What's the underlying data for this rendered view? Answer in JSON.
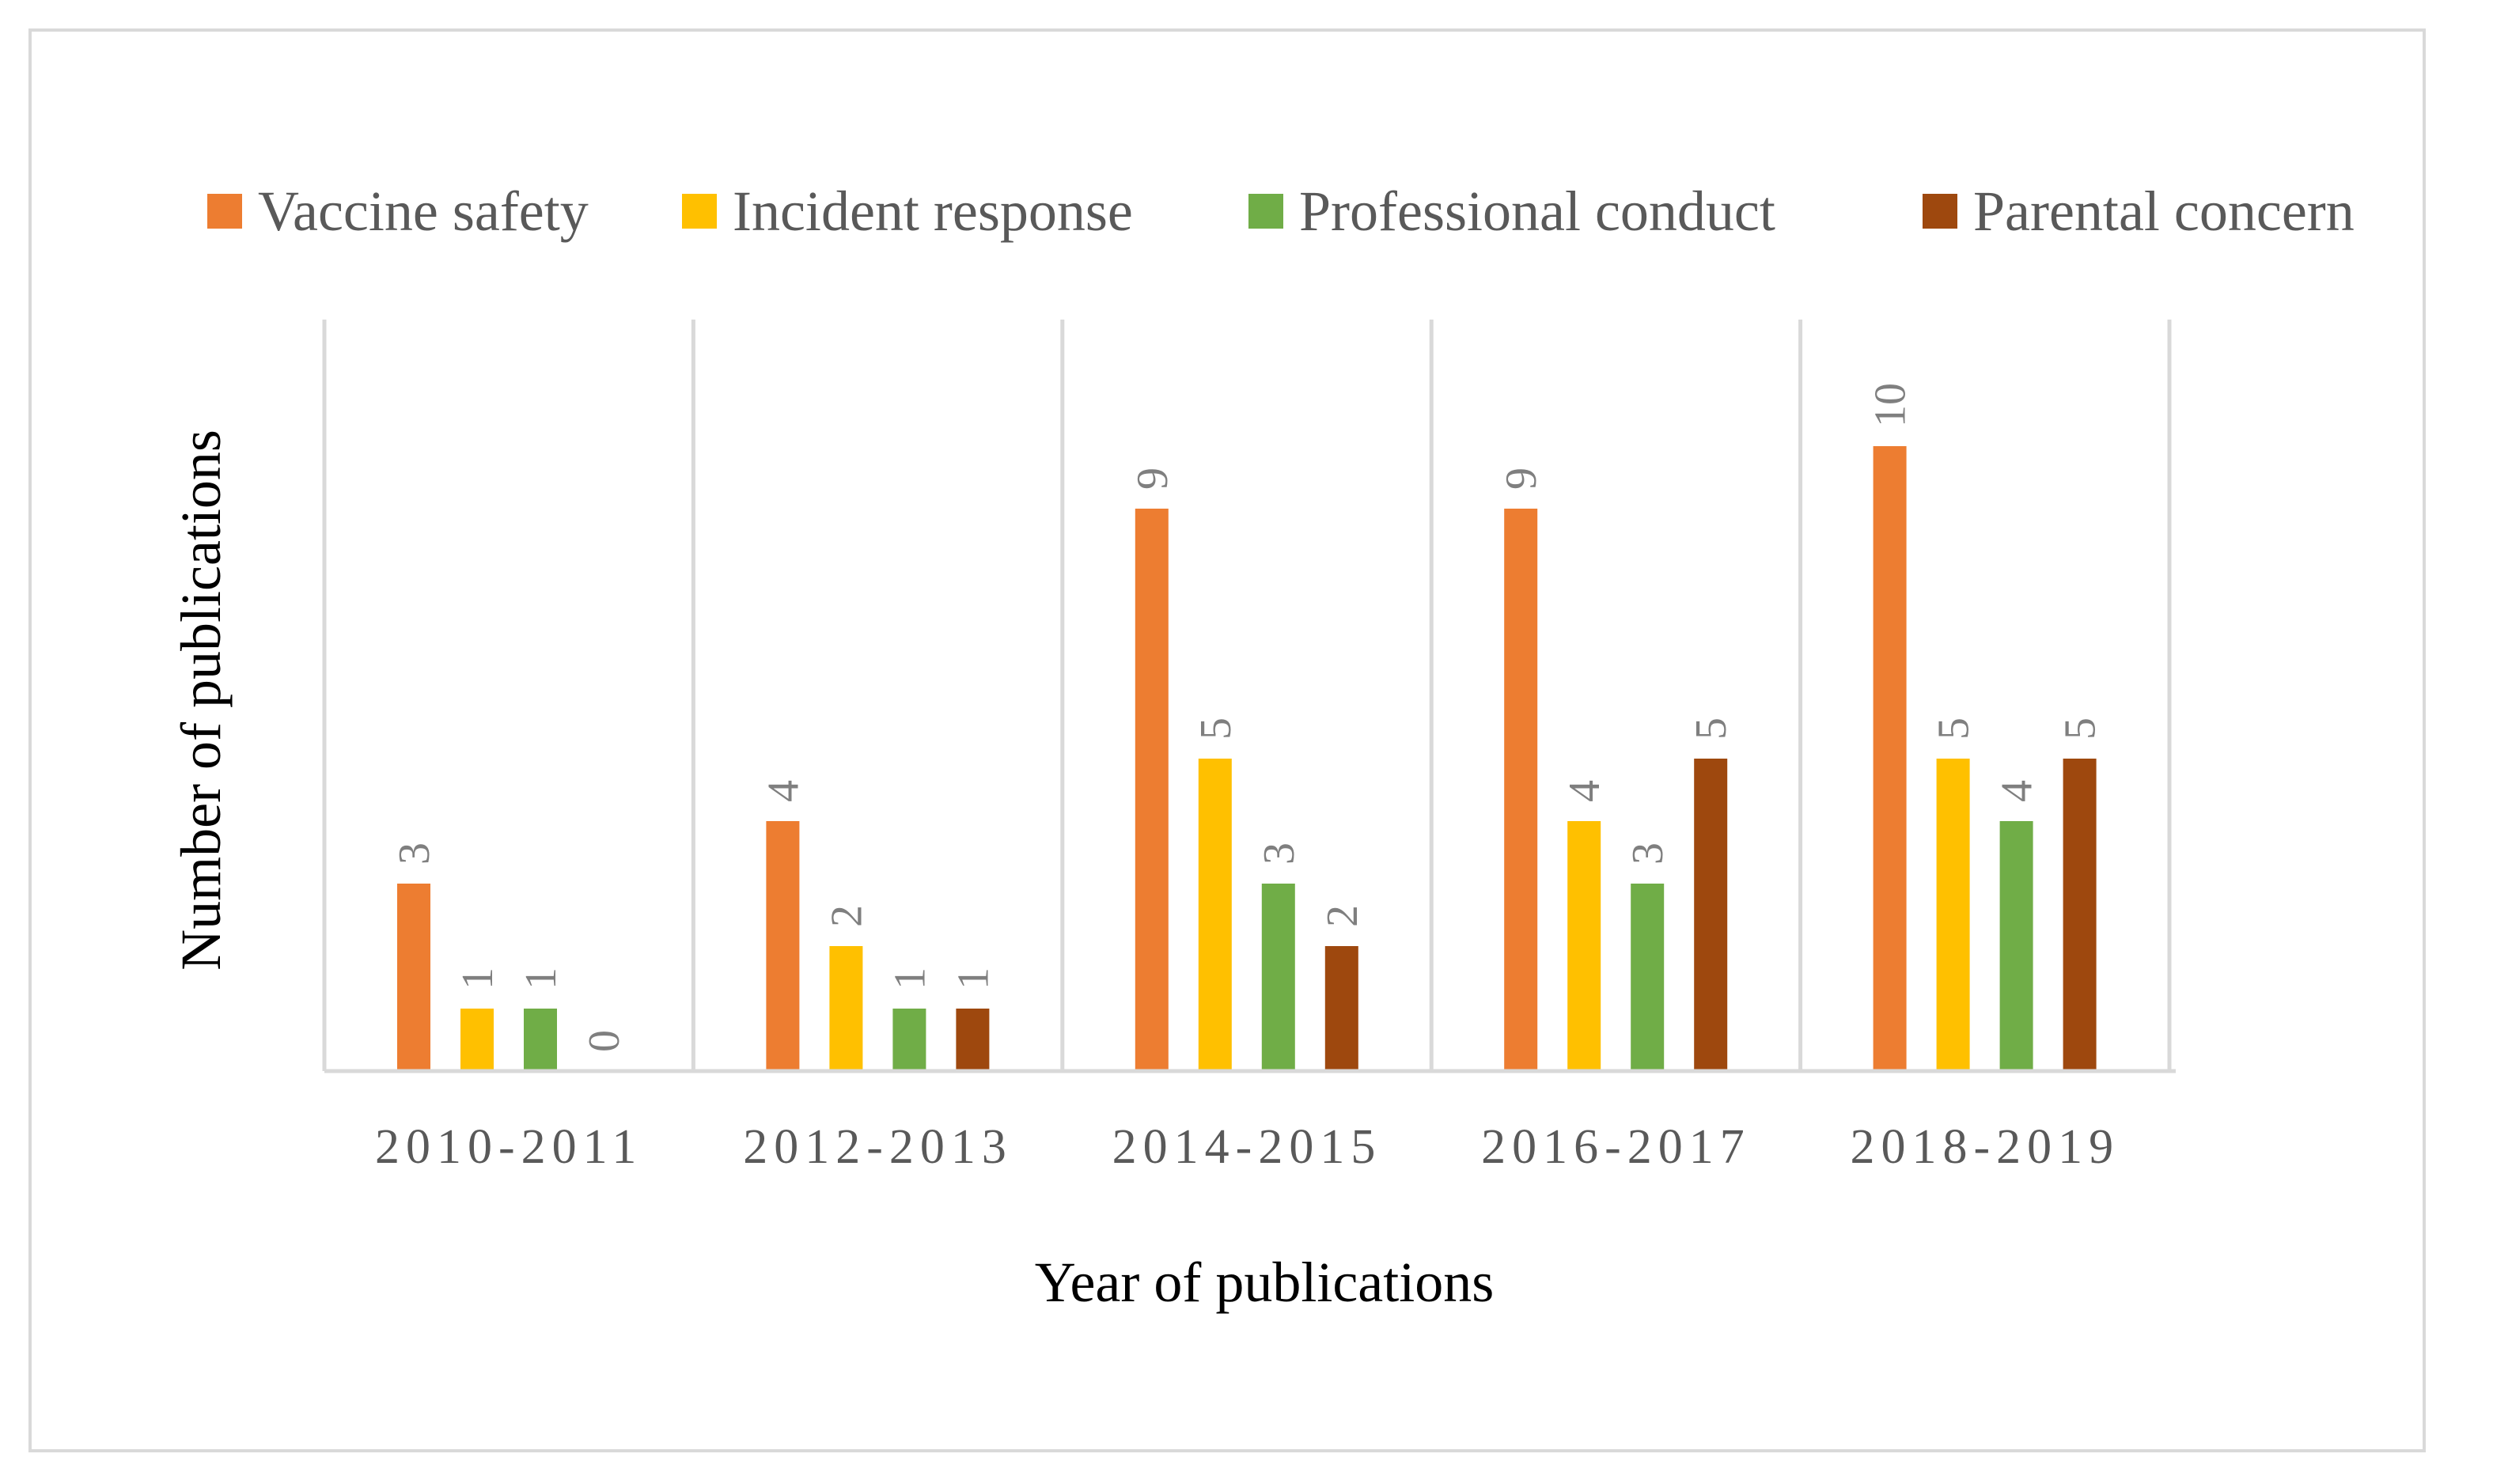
{
  "chart_data": {
    "type": "bar",
    "title": "",
    "xlabel": "Year of publications",
    "ylabel": "Number of publications",
    "categories": [
      "2010-2011",
      "2012-2013",
      "2014-2015",
      "2016-2017",
      "2018-2019"
    ],
    "series": [
      {
        "name": "Vaccine safety",
        "color": "#ED7D31",
        "values": [
          3,
          4,
          9,
          9,
          10
        ]
      },
      {
        "name": "Incident response",
        "color": "#FFC000",
        "values": [
          1,
          2,
          5,
          4,
          5
        ]
      },
      {
        "name": "Professional conduct",
        "color": "#70AD47",
        "values": [
          1,
          1,
          3,
          3,
          4
        ]
      },
      {
        "name": "Parental concern",
        "color": "#9E480E",
        "values": [
          0,
          1,
          2,
          5,
          5
        ]
      }
    ],
    "ylim": [
      0,
      12
    ],
    "data_labels": true,
    "data_label_rotation": 90,
    "grid": false,
    "category_separators": true,
    "legend": {
      "position": "top"
    }
  }
}
